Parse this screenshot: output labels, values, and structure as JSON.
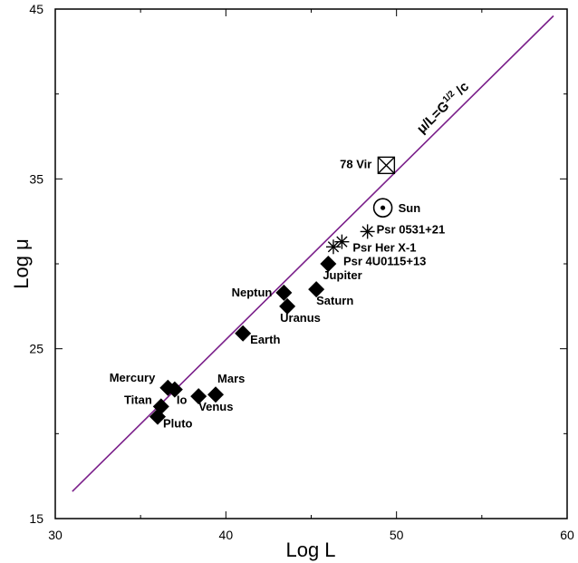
{
  "chart_data": {
    "type": "scatter",
    "xlabel": "Log L",
    "ylabel": "Log μ",
    "xlim": [
      30,
      60
    ],
    "ylim": [
      15,
      45
    ],
    "x_ticks": [
      30,
      40,
      50,
      60
    ],
    "y_ticks": [
      15,
      25,
      35,
      45
    ],
    "grid": false,
    "reference_line": {
      "label_main": "μ/L=G",
      "label_sup": "1/2",
      "label_tail": " /c",
      "color": "#7a1f8a",
      "from": [
        31.0,
        16.6
      ],
      "to": [
        59.2,
        44.6
      ]
    },
    "points": [
      {
        "name": "Pluto",
        "x": 36.0,
        "y": 21.0,
        "marker": "diamond"
      },
      {
        "name": "Titan",
        "x": 36.2,
        "y": 21.6,
        "marker": "diamond"
      },
      {
        "name": "Mercury",
        "x": 36.6,
        "y": 22.7,
        "marker": "diamond"
      },
      {
        "name": "Io",
        "x": 37.0,
        "y": 22.6,
        "marker": "diamond"
      },
      {
        "name": "Venus",
        "x": 38.4,
        "y": 22.2,
        "marker": "diamond"
      },
      {
        "name": "Mars",
        "x": 39.4,
        "y": 22.3,
        "marker": "diamond"
      },
      {
        "name": "Earth",
        "x": 41.0,
        "y": 25.9,
        "marker": "diamond"
      },
      {
        "name": "Neptun",
        "x": 43.4,
        "y": 28.3,
        "marker": "diamond"
      },
      {
        "name": "Uranus",
        "x": 43.6,
        "y": 27.5,
        "marker": "diamond"
      },
      {
        "name": "Saturn",
        "x": 45.3,
        "y": 28.5,
        "marker": "diamond"
      },
      {
        "name": "Jupiter",
        "x": 46.0,
        "y": 30.0,
        "marker": "diamond"
      },
      {
        "name": "Psr 4U0115+13",
        "x": 46.3,
        "y": 31.0,
        "marker": "asterisk"
      },
      {
        "name": "Psr Her X-1",
        "x": 46.8,
        "y": 31.3,
        "marker": "asterisk"
      },
      {
        "name": "Psr 0531+21",
        "x": 48.3,
        "y": 31.9,
        "marker": "asterisk"
      },
      {
        "name": "Sun",
        "x": 49.2,
        "y": 33.3,
        "marker": "circled-dot"
      },
      {
        "name": "78 Vir",
        "x": 49.4,
        "y": 35.8,
        "marker": "boxed-x"
      }
    ]
  }
}
